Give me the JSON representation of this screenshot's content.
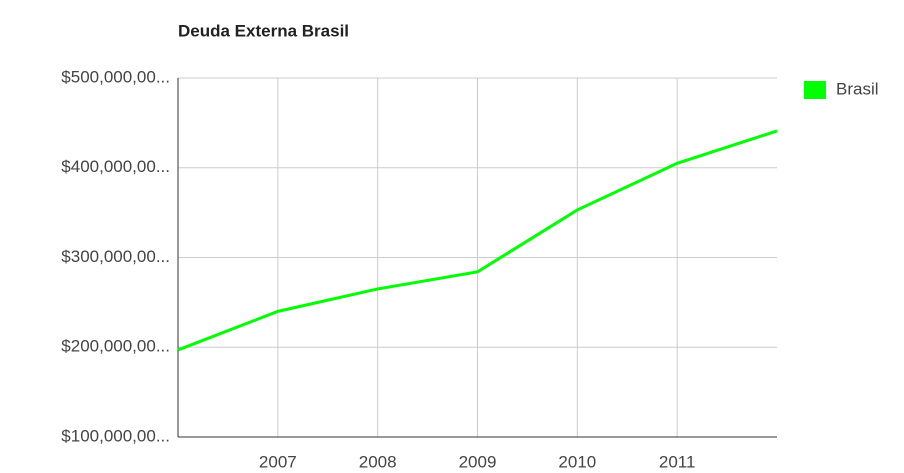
{
  "chart_data": {
    "type": "line",
    "title": "Deuda Externa Brasil",
    "x": [
      2006,
      2007,
      2008,
      2009,
      2010,
      2011,
      2012
    ],
    "series": [
      {
        "name": "Brasil",
        "color": "#00ff00",
        "values": [
          197000000,
          240000000,
          265000000,
          284000000,
          353000000,
          405000000,
          441000000
        ]
      }
    ],
    "xlim": [
      2006,
      2012
    ],
    "xticks": [
      2007,
      2008,
      2009,
      2010,
      2011
    ],
    "ylim": [
      100000000,
      500000000
    ],
    "yticks": [
      {
        "value": 100000000,
        "label": "$100,000,00..."
      },
      {
        "value": 200000000,
        "label": "$200,000,00..."
      },
      {
        "value": 300000000,
        "label": "$300,000,00..."
      },
      {
        "value": 400000000,
        "label": "$400,000,00..."
      },
      {
        "value": 500000000,
        "label": "$500,000,00..."
      }
    ],
    "grid": true,
    "legend": "right"
  }
}
